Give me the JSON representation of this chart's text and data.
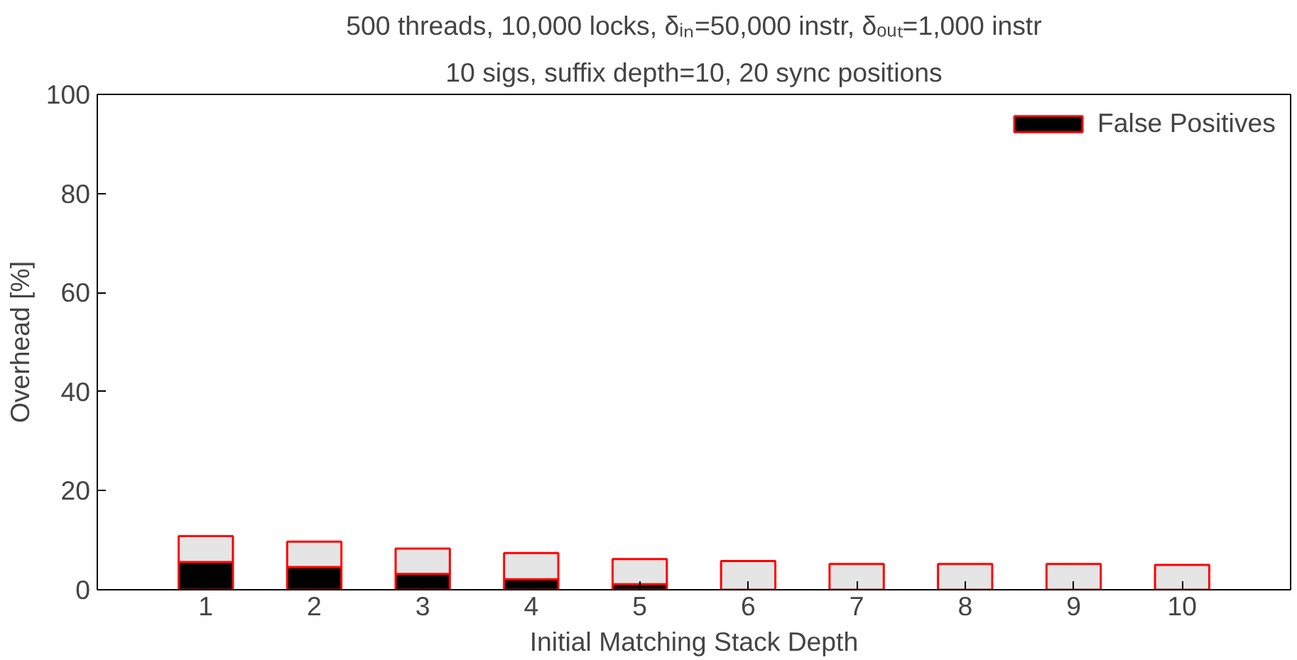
{
  "chart_data": {
    "type": "bar",
    "title": "500 threads, 10,000 locks, δᵢₙ=50,000 instr, δₒᵤₜ=1,000 instr",
    "subtitle": "10 sigs, suffix depth=10, 20 sync positions",
    "xlabel": "Initial Matching Stack Depth",
    "ylabel": "Overhead [%]",
    "categories": [
      "1",
      "2",
      "3",
      "4",
      "5",
      "6",
      "7",
      "8",
      "9",
      "10"
    ],
    "stacked": true,
    "series": [
      {
        "name": "False Positives",
        "color": "#000000",
        "values": [
          5.6,
          4.6,
          3.2,
          2.1,
          1.1,
          null,
          0,
          0,
          0,
          0
        ]
      },
      {
        "color": "#e5e5e5",
        "values": [
          5.2,
          5.1,
          5.1,
          5.3,
          5.1,
          5.8,
          5.2,
          5.2,
          5.2,
          5.0
        ]
      }
    ],
    "ylim": [
      0,
      100
    ],
    "yticks": [
      0,
      20,
      40,
      60,
      80,
      100
    ],
    "grid": false,
    "legend": "top right"
  }
}
